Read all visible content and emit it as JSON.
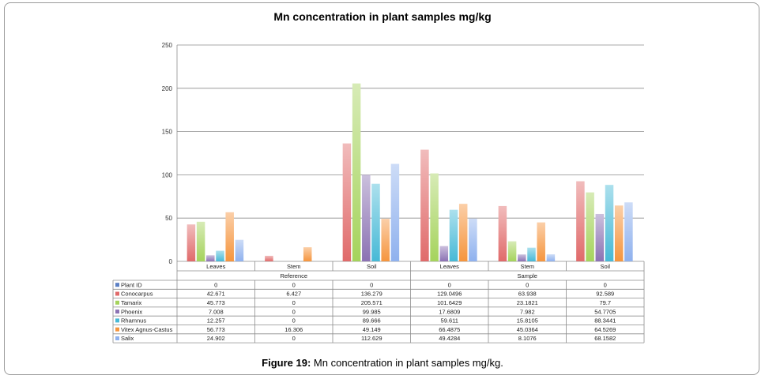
{
  "caption": {
    "label": "Figure 19:",
    "text": "Mn concentration in plant samples mg/kg."
  },
  "chart_data": {
    "type": "bar",
    "title": "Mn concentration in plant samples mg/kg",
    "ylim": [
      0,
      250
    ],
    "yticks": [
      "0",
      "50",
      "100",
      "150",
      "200",
      "250"
    ],
    "categories": [
      "Leaves",
      "Stem",
      "Soil",
      "Leaves",
      "Stem",
      "Soil"
    ],
    "groups": [
      "Reference",
      "Sample"
    ],
    "grid": true,
    "legend": "table-left",
    "series": [
      {
        "name": "Plant ID",
        "color": "#5b7fc4",
        "values": [
          0,
          0,
          0,
          0,
          0,
          0
        ],
        "labels": [
          "0",
          "0",
          "0",
          "0",
          "0",
          "0"
        ],
        "drawn": false
      },
      {
        "name": "Conocarpus",
        "color": "#e06a6a",
        "values": [
          42.671,
          6.427,
          136.279,
          129.0496,
          63.938,
          92.589
        ],
        "labels": [
          "42.671",
          "6.427",
          "136.279",
          "129.0496",
          "63.938",
          "92.589"
        ],
        "drawn": true
      },
      {
        "name": "Tamarix",
        "color": "#a5d35c",
        "values": [
          45.773,
          0,
          205.571,
          101.6429,
          23.1821,
          79.7
        ],
        "labels": [
          "45.773",
          "0",
          "205.571",
          "101.6429",
          "23.1821",
          "79.7"
        ],
        "drawn": true
      },
      {
        "name": "Phoenix",
        "color": "#8b72b3",
        "values": [
          7.008,
          0,
          99.985,
          17.6809,
          7.982,
          54.7705
        ],
        "labels": [
          "7.008",
          "0",
          "99.985",
          "17.6809",
          "7.982",
          "54.7705"
        ],
        "drawn": true
      },
      {
        "name": "Rhamnus",
        "color": "#47b9d6",
        "values": [
          12.257,
          0,
          89.666,
          59.611,
          15.8105,
          88.3441
        ],
        "labels": [
          "12.257",
          "0",
          "89.666",
          "59.611",
          "15.8105",
          "88.3441"
        ],
        "drawn": true
      },
      {
        "name": "Vitex Agnus-Castus",
        "color": "#f5953e",
        "values": [
          56.773,
          16.306,
          49.149,
          66.4875,
          45.0364,
          64.5269
        ],
        "labels": [
          "56.773",
          "16.306",
          "49.149",
          "66.4875",
          "45.0364",
          "64.5269"
        ],
        "drawn": true
      },
      {
        "name": "Salix",
        "color": "#8fb1ee",
        "values": [
          24.902,
          0,
          112.629,
          49.4284,
          8.1076,
          68.1582
        ],
        "labels": [
          "24.902",
          "0",
          "112.629",
          "49.4284",
          "8.1076",
          "68.1582"
        ],
        "drawn": true
      }
    ]
  }
}
